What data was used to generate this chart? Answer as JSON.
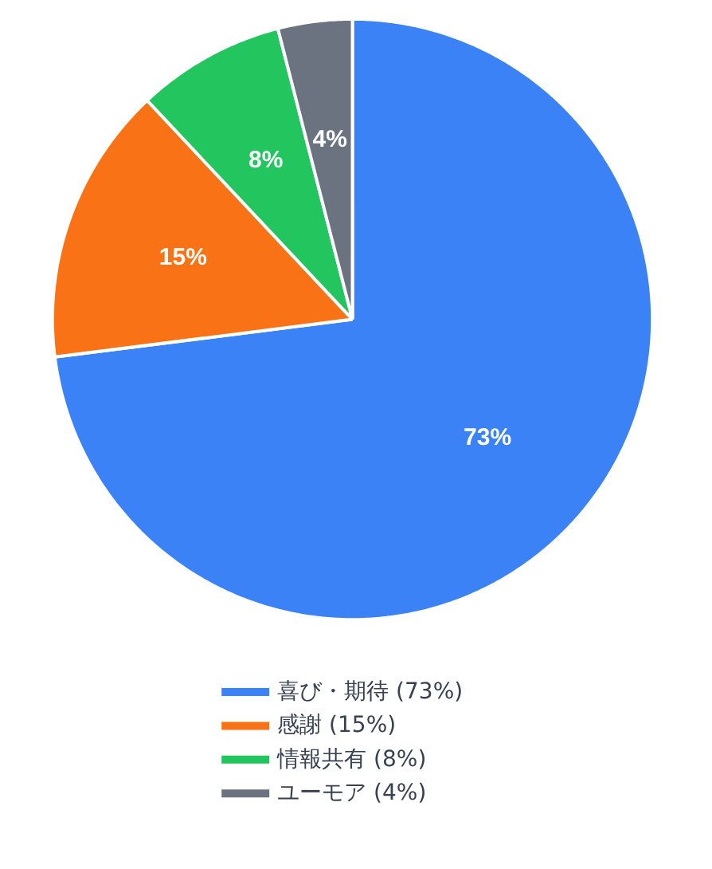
{
  "chart_data": {
    "type": "pie",
    "categories": [
      "喜び・期待 (73%)",
      "感謝 (15%)",
      "情報共有 (8%)",
      "ユーモア (4%)"
    ],
    "values": [
      73,
      15,
      8,
      4
    ],
    "value_labels": [
      "73%",
      "15%",
      "8%",
      "4%"
    ],
    "colors": [
      "#3b82f6",
      "#f97316",
      "#22c55e",
      "#6b7280"
    ],
    "legend": "bottom"
  }
}
